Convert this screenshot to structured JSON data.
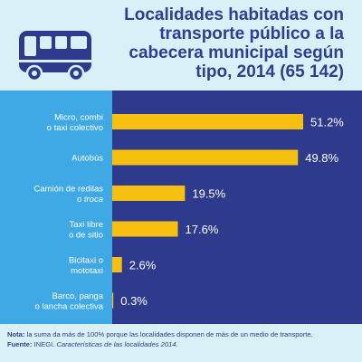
{
  "title_lines": [
    "Localidades habitadas con",
    "transporte público a la",
    "cabecera municipal según",
    "tipo, 2014 (65 142)"
  ],
  "icon": "bus-icon",
  "colors": {
    "bar": "#f7bf0f",
    "plot_bg": "#2e3a8c",
    "label_bg": "#3fa9e6",
    "page_bg": "#d9f0f7",
    "title": "#2f3f8f"
  },
  "chart_data": {
    "type": "bar",
    "orientation": "horizontal",
    "title": "Localidades habitadas con transporte público a la cabecera municipal según tipo, 2014 (65 142)",
    "categories": [
      [
        "Micro, combi",
        "o taxi colectivo"
      ],
      [
        "Autobús"
      ],
      [
        "Camión de redilas",
        "o troca"
      ],
      [
        "Taxi libre",
        "o de sitio"
      ],
      [
        "Bicitaxi o",
        "mototaxi"
      ],
      [
        "Barco, panga",
        "o lancha colectiva"
      ]
    ],
    "italic_words": [
      "troca"
    ],
    "values": [
      51.2,
      49.8,
      19.5,
      17.6,
      2.6,
      0.3
    ],
    "value_labels": [
      "51.2%",
      "49.8%",
      "19.5%",
      "17.6%",
      "2.6%",
      "0.3%"
    ],
    "xlim": [
      0,
      100
    ],
    "grid": false,
    "legend": "none"
  },
  "footer": {
    "note_label": "Nota:",
    "note_text": " la suma da más de 100% porque las localidades disponen de más de un medio de transporte.",
    "source_label": "Fuente:",
    "source_text": " INEGI. ",
    "source_italic": "Características de las localidades 2014."
  }
}
